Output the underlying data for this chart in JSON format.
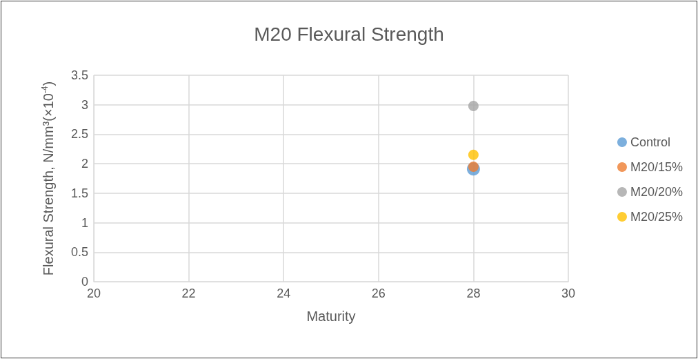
{
  "chart_data": {
    "type": "scatter",
    "title": "M20 Flexural Strength",
    "xlabel": "Maturity",
    "ylabel": "Flexural Strength, N/mm³(×10$^{-4}$)",
    "x": [
      28
    ],
    "series": [
      {
        "name": "Control",
        "color": "#5b9bd5",
        "values": [
          1.91
        ]
      },
      {
        "name": "M20/15%",
        "color": "#ed7d31",
        "values": [
          1.95
        ]
      },
      {
        "name": "M20/20%",
        "color": "#a5a5a5",
        "values": [
          2.98
        ]
      },
      {
        "name": "M20/25%",
        "color": "#ffc000",
        "values": [
          2.15
        ]
      }
    ],
    "xlim": [
      20,
      30
    ],
    "xticks": [
      20,
      22,
      24,
      26,
      28,
      30
    ],
    "ylim": [
      0,
      3.5
    ],
    "yticks": [
      0,
      0.5,
      1,
      1.5,
      2,
      2.5,
      3,
      3.5
    ],
    "grid": true,
    "legend": "right",
    "marker": "circle"
  }
}
